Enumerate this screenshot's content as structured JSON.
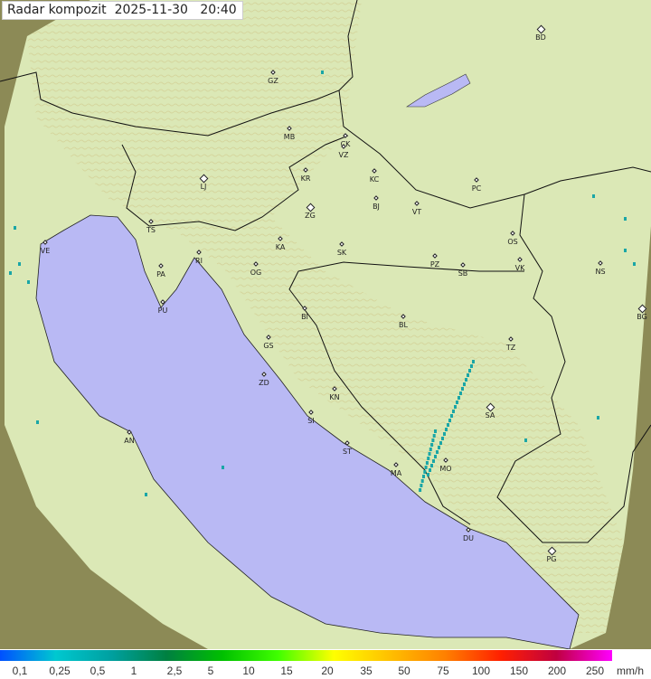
{
  "header": {
    "title": "Radar kompozit",
    "date": "2025-11-30",
    "time": "20:40"
  },
  "colors": {
    "sea": "#b9b9f4",
    "coverage": "#d9e9b8",
    "terrain_outside": "#8a8a52",
    "border": "#111111",
    "echo": "#1aa6a6"
  },
  "cities": [
    {
      "code": "GZ",
      "major": false
    },
    {
      "code": "BD",
      "major": true
    },
    {
      "code": "MB",
      "major": false
    },
    {
      "code": "CK",
      "major": false
    },
    {
      "code": "VZ",
      "major": false
    },
    {
      "code": "KR",
      "major": false
    },
    {
      "code": "KC",
      "major": false
    },
    {
      "code": "PC",
      "major": false
    },
    {
      "code": "LJ",
      "major": true
    },
    {
      "code": "ZG",
      "major": true
    },
    {
      "code": "BJ",
      "major": false
    },
    {
      "code": "VT",
      "major": false
    },
    {
      "code": "TS",
      "major": false
    },
    {
      "code": "VE",
      "major": false
    },
    {
      "code": "KA",
      "major": false
    },
    {
      "code": "SK",
      "major": false
    },
    {
      "code": "OS",
      "major": false
    },
    {
      "code": "RI",
      "major": false
    },
    {
      "code": "PA",
      "major": false
    },
    {
      "code": "OG",
      "major": false
    },
    {
      "code": "PZ",
      "major": false
    },
    {
      "code": "SB",
      "major": false
    },
    {
      "code": "VK",
      "major": false
    },
    {
      "code": "NS",
      "major": false
    },
    {
      "code": "PU",
      "major": false
    },
    {
      "code": "BI",
      "major": false
    },
    {
      "code": "BL",
      "major": false
    },
    {
      "code": "BG",
      "major": true
    },
    {
      "code": "GS",
      "major": false
    },
    {
      "code": "TZ",
      "major": false
    },
    {
      "code": "ZD",
      "major": false
    },
    {
      "code": "KN",
      "major": false
    },
    {
      "code": "SA",
      "major": true
    },
    {
      "code": "SI",
      "major": false
    },
    {
      "code": "AN",
      "major": false
    },
    {
      "code": "ST",
      "major": false
    },
    {
      "code": "MO",
      "major": false
    },
    {
      "code": "MA",
      "major": false
    },
    {
      "code": "DU",
      "major": false
    },
    {
      "code": "PG",
      "major": true
    }
  ],
  "legend": {
    "labels": [
      "0,1",
      "0,25",
      "0,5",
      "1",
      "2,5",
      "5",
      "10",
      "15",
      "20",
      "35",
      "50",
      "75",
      "100",
      "150",
      "200",
      "250"
    ],
    "unit": "mm/h",
    "gradient": [
      "#0050ff",
      "#00c8d0",
      "#00a0a0",
      "#008040",
      "#00c000",
      "#40ff00",
      "#ffff00",
      "#ffc000",
      "#ff8000",
      "#ff2000",
      "#c00040",
      "#ff00ff"
    ]
  }
}
